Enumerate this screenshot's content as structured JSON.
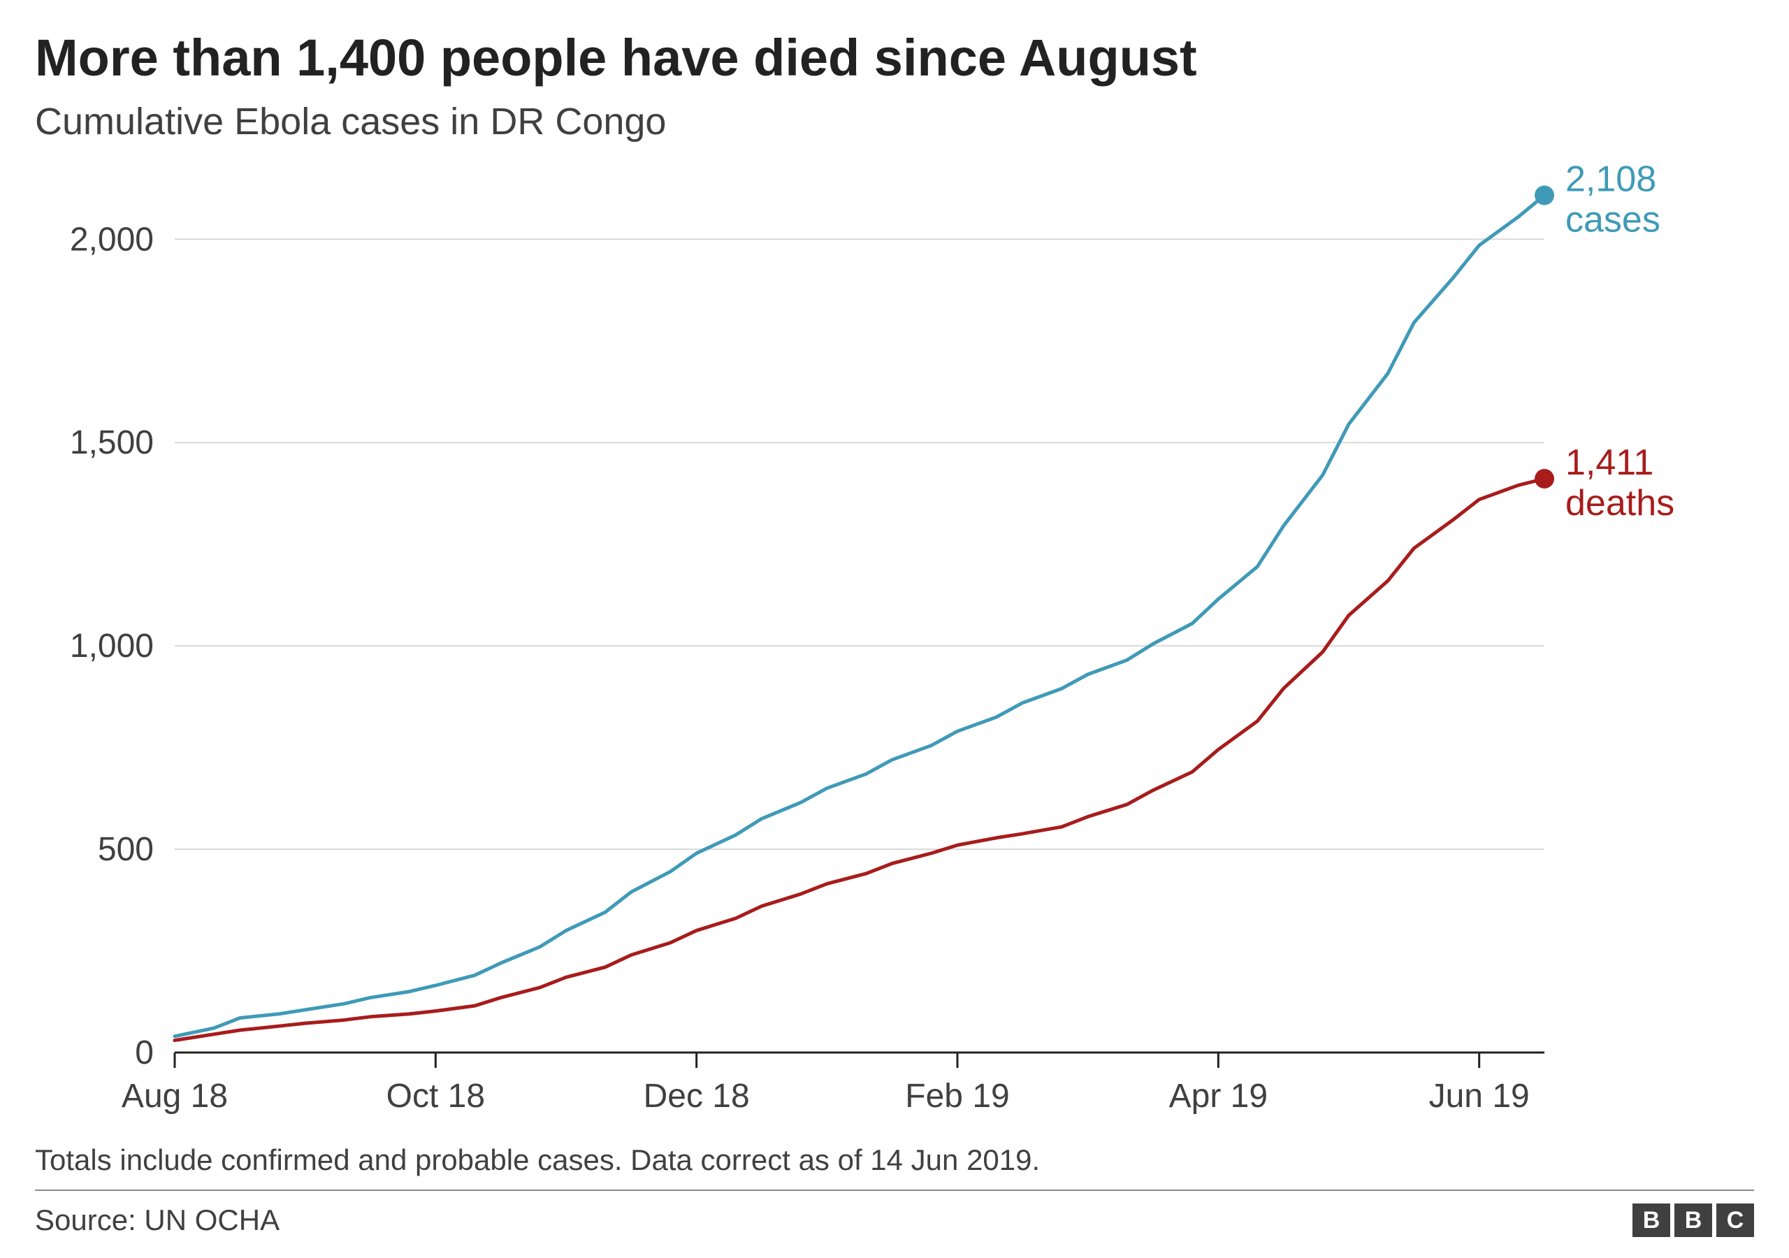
{
  "title": "More than 1,400 people have died since August",
  "subtitle": "Cumulative Ebola cases in DR Congo",
  "note": "Totals include confirmed and probable cases. Data correct as of 14 Jun 2019.",
  "source": "Source: UN OCHA",
  "logo_letters": [
    "B",
    "B",
    "C"
  ],
  "chart": {
    "type": "line",
    "background_color": "#ffffff",
    "axis_color": "#222222",
    "grid_color": "#d9d9d9",
    "tick_label_color": "#404040",
    "tick_fontsize": 48,
    "x_ticks": [
      "Aug 18",
      "Oct 18",
      "Dec 18",
      "Feb 19",
      "Apr 19",
      "Jun 19"
    ],
    "x_domain_index": [
      0,
      10.5
    ],
    "x_tick_positions": [
      0,
      2,
      4,
      6,
      8,
      10
    ],
    "y_ticks": [
      0,
      500,
      1000,
      1500,
      2000
    ],
    "y_tick_labels": [
      "0",
      "500",
      "1,000",
      "1,500",
      "2,000"
    ],
    "ylim": [
      0,
      2150
    ],
    "line_width": 5,
    "marker_radius": 14,
    "series": [
      {
        "name": "cases",
        "color": "#3f9ab7",
        "end_label_number": "2,108",
        "end_label_text": "cases",
        "points": [
          [
            0.0,
            40
          ],
          [
            0.3,
            60
          ],
          [
            0.5,
            85
          ],
          [
            0.8,
            95
          ],
          [
            1.0,
            105
          ],
          [
            1.3,
            120
          ],
          [
            1.5,
            135
          ],
          [
            1.8,
            150
          ],
          [
            2.0,
            165
          ],
          [
            2.3,
            190
          ],
          [
            2.5,
            220
          ],
          [
            2.8,
            260
          ],
          [
            3.0,
            300
          ],
          [
            3.3,
            345
          ],
          [
            3.5,
            395
          ],
          [
            3.8,
            445
          ],
          [
            4.0,
            490
          ],
          [
            4.3,
            535
          ],
          [
            4.5,
            575
          ],
          [
            4.8,
            615
          ],
          [
            5.0,
            650
          ],
          [
            5.3,
            685
          ],
          [
            5.5,
            720
          ],
          [
            5.8,
            755
          ],
          [
            6.0,
            790
          ],
          [
            6.3,
            825
          ],
          [
            6.5,
            860
          ],
          [
            6.8,
            895
          ],
          [
            7.0,
            930
          ],
          [
            7.3,
            965
          ],
          [
            7.5,
            1005
          ],
          [
            7.8,
            1055
          ],
          [
            8.0,
            1115
          ],
          [
            8.3,
            1195
          ],
          [
            8.5,
            1295
          ],
          [
            8.8,
            1420
          ],
          [
            9.0,
            1545
          ],
          [
            9.3,
            1670
          ],
          [
            9.5,
            1795
          ],
          [
            9.8,
            1905
          ],
          [
            10.0,
            1985
          ],
          [
            10.3,
            2055
          ],
          [
            10.5,
            2108
          ]
        ]
      },
      {
        "name": "deaths",
        "color": "#a81c1c",
        "end_label_number": "1,411",
        "end_label_text": "deaths",
        "points": [
          [
            0.0,
            30
          ],
          [
            0.3,
            45
          ],
          [
            0.5,
            55
          ],
          [
            0.8,
            65
          ],
          [
            1.0,
            72
          ],
          [
            1.3,
            80
          ],
          [
            1.5,
            88
          ],
          [
            1.8,
            95
          ],
          [
            2.0,
            102
          ],
          [
            2.3,
            115
          ],
          [
            2.5,
            135
          ],
          [
            2.8,
            160
          ],
          [
            3.0,
            185
          ],
          [
            3.3,
            210
          ],
          [
            3.5,
            240
          ],
          [
            3.8,
            270
          ],
          [
            4.0,
            300
          ],
          [
            4.3,
            330
          ],
          [
            4.5,
            360
          ],
          [
            4.8,
            390
          ],
          [
            5.0,
            415
          ],
          [
            5.3,
            440
          ],
          [
            5.5,
            465
          ],
          [
            5.8,
            490
          ],
          [
            6.0,
            510
          ],
          [
            6.3,
            528
          ],
          [
            6.5,
            538
          ],
          [
            6.8,
            555
          ],
          [
            7.0,
            580
          ],
          [
            7.3,
            610
          ],
          [
            7.5,
            645
          ],
          [
            7.8,
            690
          ],
          [
            8.0,
            745
          ],
          [
            8.3,
            815
          ],
          [
            8.5,
            895
          ],
          [
            8.8,
            985
          ],
          [
            9.0,
            1075
          ],
          [
            9.3,
            1160
          ],
          [
            9.5,
            1240
          ],
          [
            9.8,
            1310
          ],
          [
            10.0,
            1360
          ],
          [
            10.3,
            1395
          ],
          [
            10.5,
            1411
          ]
        ]
      }
    ]
  }
}
